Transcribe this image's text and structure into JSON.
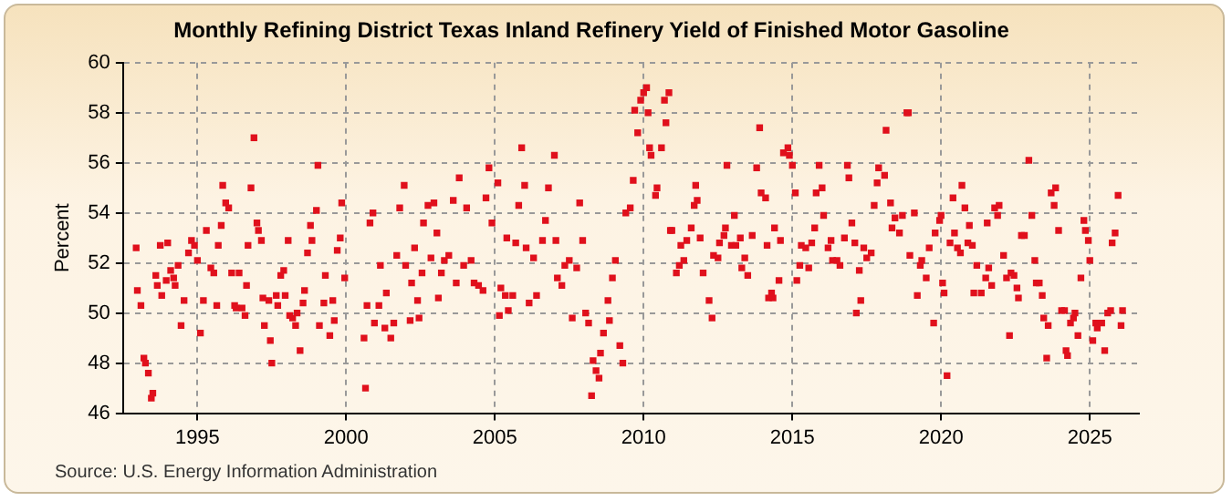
{
  "chart_data": {
    "type": "scatter",
    "title": "Monthly Refining District Texas Inland Refinery Yield of Finished Motor Gasoline",
    "ylabel": "Percent",
    "annotations": [
      "Source: U.S. Energy Information Administration"
    ],
    "xlim": [
      1992.5,
      2026.65
    ],
    "xticks": [
      1995,
      2000,
      2005,
      2010,
      2015,
      2020,
      2025
    ],
    "ylim": [
      46,
      60
    ],
    "yticks": [
      46,
      48,
      50,
      52,
      54,
      56,
      58,
      60
    ],
    "grid": true,
    "marker": "square",
    "series": [
      {
        "color": "#e0101c",
        "x": [
          1992.94,
          1992.98,
          1993.1,
          1993.2,
          1993.25,
          1993.35,
          1993.45,
          1993.5,
          1993.6,
          1993.65,
          1993.75,
          1993.8,
          1993.95,
          1994.0,
          1994.1,
          1994.2,
          1994.25,
          1994.35,
          1994.45,
          1994.55,
          1994.7,
          1994.8,
          1994.9,
          1995.0,
          1995.1,
          1995.2,
          1995.3,
          1995.45,
          1995.55,
          1995.65,
          1995.7,
          1995.8,
          1995.85,
          1995.95,
          1996.05,
          1996.15,
          1996.25,
          1996.3,
          1996.4,
          1996.5,
          1996.6,
          1996.65,
          1996.7,
          1996.8,
          1996.9,
          1997.0,
          1997.05,
          1997.15,
          1997.2,
          1997.25,
          1997.4,
          1997.45,
          1997.5,
          1997.65,
          1997.7,
          1997.8,
          1997.9,
          1997.95,
          1998.05,
          1998.1,
          1998.2,
          1998.3,
          1998.35,
          1998.45,
          1998.55,
          1998.6,
          1998.7,
          1998.8,
          1998.85,
          1999.0,
          1999.05,
          1999.1,
          1999.25,
          1999.3,
          1999.45,
          1999.55,
          1999.6,
          1999.7,
          1999.8,
          1999.85,
          1999.95,
          2000.6,
          2000.65,
          2000.7,
          2000.8,
          2000.9,
          2000.95,
          2001.1,
          2001.15,
          2001.3,
          2001.35,
          2001.5,
          2001.6,
          2001.7,
          2001.8,
          2001.95,
          2002.0,
          2002.15,
          2002.2,
          2002.3,
          2002.4,
          2002.45,
          2002.55,
          2002.6,
          2002.75,
          2002.85,
          2002.95,
          2003.05,
          2003.1,
          2003.2,
          2003.3,
          2003.45,
          2003.6,
          2003.7,
          2003.8,
          2003.95,
          2004.05,
          2004.2,
          2004.3,
          2004.45,
          2004.6,
          2004.7,
          2004.8,
          2004.9,
          2005.1,
          2005.15,
          2005.2,
          2005.35,
          2005.4,
          2005.45,
          2005.6,
          2005.7,
          2005.8,
          2005.9,
          2006.0,
          2006.05,
          2006.15,
          2006.3,
          2006.4,
          2006.6,
          2006.7,
          2006.8,
          2007.0,
          2007.05,
          2007.1,
          2007.25,
          2007.35,
          2007.5,
          2007.6,
          2007.75,
          2007.85,
          2007.95,
          2008.05,
          2008.15,
          2008.25,
          2008.3,
          2008.4,
          2008.5,
          2008.55,
          2008.65,
          2008.8,
          2008.85,
          2008.95,
          2009.05,
          2009.2,
          2009.3,
          2009.4,
          2009.55,
          2009.65,
          2009.7,
          2009.8,
          2009.9,
          2010.0,
          2010.1,
          2010.15,
          2010.2,
          2010.25,
          2010.4,
          2010.45,
          2010.6,
          2010.7,
          2010.75,
          2010.85,
          2010.9,
          2010.95,
          2011.1,
          2011.2,
          2011.25,
          2011.35,
          2011.45,
          2011.6,
          2011.7,
          2011.75,
          2011.8,
          2011.9,
          2012.0,
          2012.2,
          2012.3,
          2012.35,
          2012.5,
          2012.55,
          2012.7,
          2012.75,
          2012.8,
          2012.95,
          2013.05,
          2013.1,
          2013.25,
          2013.3,
          2013.4,
          2013.5,
          2013.65,
          2013.8,
          2013.9,
          2013.95,
          2014.1,
          2014.15,
          2014.2,
          2014.3,
          2014.35,
          2014.4,
          2014.55,
          2014.6,
          2014.7,
          2014.85,
          2014.9,
          2015.0,
          2015.1,
          2015.15,
          2015.25,
          2015.3,
          2015.45,
          2015.55,
          2015.65,
          2015.75,
          2015.8,
          2015.9,
          2016.0,
          2016.05,
          2016.2,
          2016.3,
          2016.35,
          2016.5,
          2016.6,
          2016.75,
          2016.85,
          2016.9,
          2017.0,
          2017.1,
          2017.15,
          2017.25,
          2017.3,
          2017.4,
          2017.5,
          2017.65,
          2017.75,
          2017.85,
          2017.9,
          2018.1,
          2018.15,
          2018.3,
          2018.35,
          2018.45,
          2018.6,
          2018.7,
          2018.85,
          2018.9,
          2018.95,
          2019.1,
          2019.2,
          2019.3,
          2019.35,
          2019.5,
          2019.6,
          2019.75,
          2019.8,
          2019.95,
          2020.0,
          2020.05,
          2020.1,
          2020.2,
          2020.3,
          2020.4,
          2020.45,
          2020.55,
          2020.65,
          2020.7,
          2020.8,
          2020.9,
          2020.95,
          2021.05,
          2021.1,
          2021.2,
          2021.35,
          2021.5,
          2021.55,
          2021.6,
          2021.7,
          2021.8,
          2021.9,
          2021.95,
          2022.1,
          2022.2,
          2022.3,
          2022.35,
          2022.45,
          2022.55,
          2022.6,
          2022.7,
          2022.8,
          2022.95,
          2023.05,
          2023.15,
          2023.2,
          2023.3,
          2023.4,
          2023.45,
          2023.55,
          2023.6,
          2023.7,
          2023.8,
          2023.85,
          2023.95,
          2024.05,
          2024.15,
          2024.2,
          2024.25,
          2024.35,
          2024.45,
          2024.5,
          2024.6,
          2024.7,
          2024.8,
          2024.85,
          2024.95,
          2025.0,
          2025.1,
          2025.2,
          2025.25,
          2025.4,
          2025.5,
          2025.6,
          2025.7,
          2025.75,
          2025.85,
          2025.95,
          2026.05,
          2026.1
        ],
        "values": [
          52.6,
          50.9,
          50.3,
          48.2,
          48.0,
          47.6,
          46.6,
          46.8,
          51.5,
          51.1,
          52.7,
          50.7,
          51.3,
          52.8,
          51.7,
          51.4,
          51.1,
          51.9,
          49.5,
          50.5,
          52.4,
          52.9,
          52.7,
          52.1,
          49.2,
          50.5,
          53.3,
          51.8,
          51.6,
          50.3,
          52.7,
          53.5,
          55.1,
          54.4,
          54.2,
          51.6,
          50.3,
          50.2,
          51.6,
          50.2,
          49.9,
          51.1,
          52.7,
          55.0,
          57.0,
          53.6,
          53.3,
          52.9,
          50.6,
          49.5,
          50.5,
          48.9,
          48.0,
          50.7,
          50.3,
          51.5,
          51.7,
          50.7,
          52.9,
          49.9,
          49.8,
          49.5,
          50.0,
          48.5,
          50.4,
          50.9,
          52.4,
          53.5,
          52.9,
          54.1,
          55.9,
          49.5,
          50.4,
          51.5,
          49.1,
          50.5,
          49.7,
          52.5,
          53.0,
          54.4,
          51.4,
          49.0,
          47.0,
          50.3,
          53.6,
          54.0,
          49.6,
          50.3,
          51.9,
          49.4,
          50.8,
          49.0,
          49.6,
          52.3,
          54.2,
          55.1,
          51.9,
          49.7,
          51.2,
          52.6,
          50.5,
          49.8,
          51.6,
          53.6,
          54.3,
          52.2,
          54.4,
          53.2,
          50.6,
          51.6,
          52.1,
          52.3,
          54.5,
          51.2,
          55.4,
          51.9,
          54.2,
          52.1,
          51.2,
          51.1,
          50.9,
          54.6,
          55.8,
          53.6,
          55.2,
          49.9,
          51.0,
          50.7,
          53.0,
          50.1,
          50.7,
          52.8,
          54.3,
          56.6,
          55.1,
          52.6,
          50.4,
          52.2,
          50.7,
          52.9,
          53.7,
          55.0,
          56.3,
          52.9,
          51.4,
          51.1,
          51.9,
          52.1,
          49.8,
          51.8,
          54.4,
          52.9,
          50.0,
          49.6,
          46.7,
          48.1,
          47.7,
          47.4,
          48.4,
          49.2,
          50.5,
          49.7,
          51.4,
          52.1,
          48.7,
          48.0,
          54.0,
          54.2,
          55.3,
          58.1,
          57.2,
          58.5,
          58.8,
          59.0,
          58.0,
          56.6,
          56.3,
          54.7,
          55.0,
          56.6,
          58.5,
          57.6,
          58.8,
          53.3,
          53.3,
          51.6,
          51.9,
          52.7,
          52.1,
          52.9,
          53.4,
          54.3,
          55.1,
          54.5,
          53.0,
          51.6,
          50.5,
          49.8,
          52.3,
          52.2,
          52.8,
          53.1,
          53.4,
          55.9,
          52.7,
          53.9,
          52.7,
          53.0,
          51.8,
          52.2,
          51.5,
          53.1,
          55.8,
          57.4,
          54.8,
          54.6,
          52.7,
          50.6,
          50.8,
          50.6,
          53.4,
          51.3,
          52.9,
          56.4,
          56.6,
          56.3,
          55.9,
          54.8,
          51.3,
          51.9,
          52.7,
          52.6,
          51.8,
          52.8,
          53.4,
          54.8,
          55.9,
          55.0,
          53.9,
          52.6,
          52.9,
          52.1,
          52.1,
          51.9,
          53.0,
          55.9,
          55.4,
          53.6,
          52.8,
          50.0,
          51.7,
          50.5,
          52.6,
          52.2,
          52.4,
          54.3,
          55.2,
          55.8,
          55.5,
          57.3,
          54.4,
          53.4,
          53.8,
          53.2,
          53.9,
          58.0,
          58.0,
          52.3,
          54.0,
          50.7,
          51.9,
          52.1,
          51.4,
          52.6,
          49.6,
          53.2,
          53.7,
          53.9,
          51.2,
          50.8,
          47.5,
          52.8,
          54.6,
          53.2,
          52.6,
          52.4,
          55.1,
          54.2,
          52.8,
          53.5,
          52.7,
          50.8,
          51.9,
          50.8,
          51.4,
          53.6,
          51.8,
          51.1,
          54.2,
          53.9,
          54.3,
          52.3,
          51.4,
          49.1,
          51.6,
          51.5,
          51.0,
          50.6,
          53.1,
          53.1,
          56.1,
          53.9,
          52.1,
          51.2,
          51.2,
          50.7,
          49.8,
          48.2,
          49.5,
          54.8,
          54.3,
          55.0,
          53.3,
          50.1,
          50.1,
          48.5,
          48.3,
          49.6,
          49.8,
          50.0,
          49.1,
          51.4,
          53.7,
          53.3,
          52.9,
          52.1,
          48.9,
          49.6,
          49.4,
          49.6,
          48.5,
          50.0,
          50.1,
          52.8,
          53.2,
          54.7,
          49.5,
          50.1
        ]
      }
    ]
  }
}
